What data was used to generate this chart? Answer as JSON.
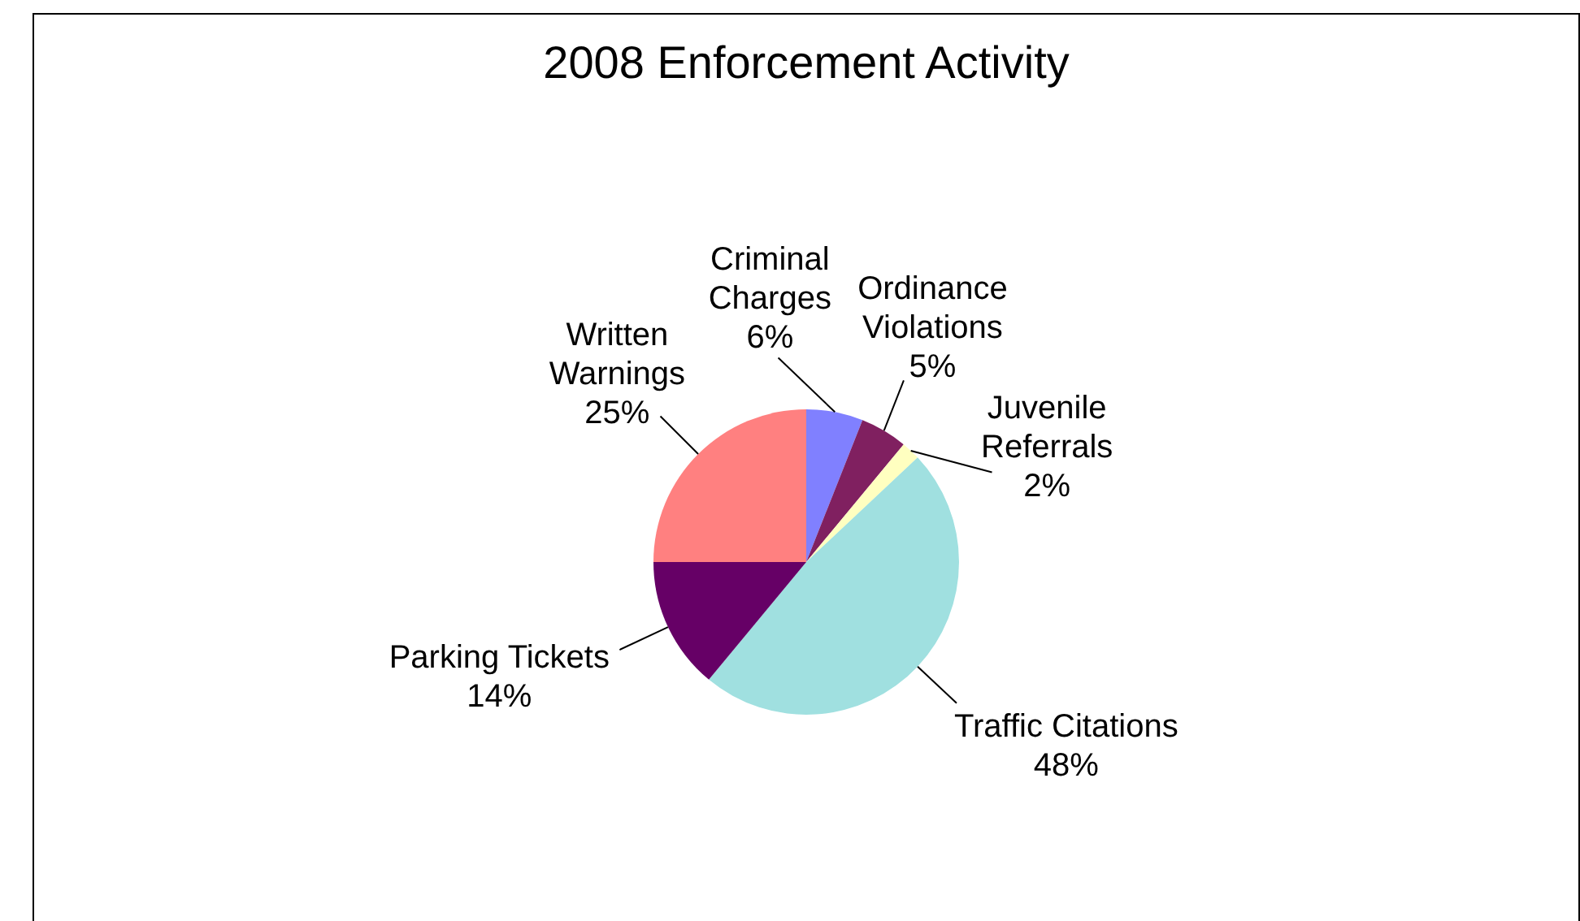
{
  "chart_data": {
    "type": "pie",
    "title": "2008 Enforcement Activity",
    "categories": [
      "Criminal Charges",
      "Ordinance Violations",
      "Juvenile Referrals",
      "Traffic Citations",
      "Parking Tickets",
      "Written Warnings"
    ],
    "values": [
      6,
      5,
      2,
      48,
      14,
      25
    ],
    "value_labels": [
      "6%",
      "5%",
      "2%",
      "48%",
      "14%",
      "25%"
    ],
    "colors": [
      "#8080ff",
      "#802060",
      "#ffffc0",
      "#a0e0e0",
      "#660066",
      "#ff8080"
    ]
  }
}
